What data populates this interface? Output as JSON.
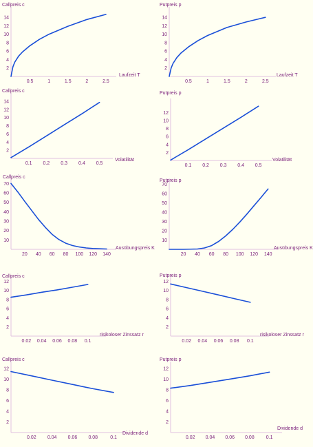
{
  "colors": {
    "background": "#fffff2",
    "text": "#7a1f7a",
    "axis": "#e0c0e0",
    "curve": "#1a4fd8"
  },
  "chart_data": [
    {
      "type": "line",
      "ylabel": "Callpreis c",
      "xlabel": "Laufzeit T",
      "xlim": [
        0,
        2.7
      ],
      "ylim": [
        0,
        15.5
      ],
      "xticks": [
        0.5,
        1,
        1.5,
        2,
        2.5
      ],
      "xtick_labels": [
        "0.5",
        "1",
        "1.5",
        "2",
        "2.5"
      ],
      "yticks": [
        2,
        4,
        6,
        8,
        10,
        12,
        14
      ],
      "ytick_labels": [
        "2",
        "4",
        "6",
        "8",
        "10",
        "12",
        "14"
      ],
      "series": [
        {
          "x": [
            0,
            0.05,
            0.1,
            0.2,
            0.3,
            0.5,
            0.75,
            1,
            1.5,
            2,
            2.5
          ],
          "y": [
            0,
            2.3,
            3.4,
            4.8,
            5.8,
            7.3,
            8.8,
            10,
            11.9,
            13.5,
            14.7
          ]
        }
      ]
    },
    {
      "type": "line",
      "ylabel": "Putpreis p",
      "xlabel": "Laufzeit T",
      "xlim": [
        0,
        2.7
      ],
      "ylim": [
        0,
        15.5
      ],
      "xticks": [
        0.5,
        1,
        1.5,
        2,
        2.5
      ],
      "xtick_labels": [
        "0.5",
        "1",
        "1.5",
        "2",
        "2.5"
      ],
      "yticks": [
        2,
        4,
        6,
        8,
        10,
        12,
        14
      ],
      "ytick_labels": [
        "2",
        "4",
        "6",
        "8",
        "10",
        "12",
        "14"
      ],
      "series": [
        {
          "x": [
            0,
            0.05,
            0.1,
            0.2,
            0.3,
            0.5,
            0.75,
            1,
            1.5,
            2,
            2.5
          ],
          "y": [
            0,
            2.0,
            3.1,
            4.5,
            5.5,
            7.0,
            8.5,
            9.7,
            11.6,
            12.9,
            14.0
          ]
        }
      ]
    },
    {
      "type": "line",
      "ylabel": "Callpreis c",
      "xlabel": "Volatilität",
      "xlim": [
        0,
        0.56
      ],
      "ylim": [
        0,
        15
      ],
      "xticks": [
        0.1,
        0.2,
        0.3,
        0.4,
        0.5
      ],
      "xtick_labels": [
        "0.1",
        "0.2",
        "0.3",
        "0.4",
        "0.5"
      ],
      "yticks": [
        2,
        4,
        6,
        8,
        10,
        12,
        14
      ],
      "ytick_labels": [
        "2",
        "4",
        "6",
        "8",
        "10",
        "12",
        "14"
      ],
      "series": [
        {
          "x": [
            0,
            0.1,
            0.2,
            0.3,
            0.4,
            0.5
          ],
          "y": [
            0.2,
            2.8,
            5.5,
            8.2,
            10.9,
            13.7
          ]
        }
      ]
    },
    {
      "type": "line",
      "ylabel": "Putpreis p",
      "xlabel": "Volatilität",
      "xlim": [
        0,
        0.56
      ],
      "ylim": [
        0,
        14.5
      ],
      "xticks": [
        0.1,
        0.2,
        0.3,
        0.4,
        0.5
      ],
      "xtick_labels": [
        "0.1",
        "0.2",
        "0.3",
        "0.4",
        "0.5"
      ],
      "yticks": [
        2,
        4,
        6,
        8,
        10,
        12
      ],
      "ytick_labels": [
        "2",
        "4",
        "6",
        "8",
        "10",
        "12"
      ],
      "series": [
        {
          "x": [
            0,
            0.1,
            0.2,
            0.3,
            0.4,
            0.5
          ],
          "y": [
            0.1,
            2.7,
            5.4,
            8.1,
            10.8,
            13.6
          ]
        }
      ]
    },
    {
      "type": "line",
      "ylabel": "Callpreis c",
      "xlabel": "Ausübungspreis K",
      "xlim": [
        0,
        150
      ],
      "ylim": [
        0,
        71
      ],
      "xticks": [
        20,
        40,
        60,
        80,
        100,
        120,
        140
      ],
      "xtick_labels": [
        "20",
        "40",
        "60",
        "80",
        "100",
        "120",
        "140"
      ],
      "yticks": [
        10,
        20,
        30,
        40,
        50,
        60,
        70
      ],
      "ytick_labels": [
        "10",
        "20",
        "30",
        "40",
        "50",
        "60",
        "70"
      ],
      "series": [
        {
          "x": [
            0,
            10,
            20,
            30,
            40,
            50,
            60,
            70,
            80,
            90,
            100,
            110,
            120,
            130,
            140
          ],
          "y": [
            70,
            61,
            51,
            41.5,
            32,
            23.5,
            16,
            10.5,
            6.5,
            4,
            2.5,
            1.5,
            0.9,
            0.6,
            0.4
          ]
        }
      ]
    },
    {
      "type": "line",
      "ylabel": "Putpreis p",
      "xlabel": "Ausübungspreis K",
      "xlim": [
        0,
        150
      ],
      "ylim": [
        0,
        72
      ],
      "xticks": [
        20,
        40,
        60,
        80,
        100,
        120,
        140
      ],
      "xtick_labels": [
        "20",
        "40",
        "60",
        "80",
        "100",
        "120",
        "140"
      ],
      "yticks": [
        10,
        20,
        30,
        40,
        50,
        60,
        70
      ],
      "ytick_labels": [
        "10",
        "20",
        "30",
        "40",
        "50",
        "60",
        "70"
      ],
      "series": [
        {
          "x": [
            0,
            20,
            40,
            50,
            60,
            70,
            80,
            90,
            100,
            110,
            120,
            130,
            140
          ],
          "y": [
            0,
            0,
            0.4,
            1.5,
            4,
            8.5,
            14.5,
            21.5,
            29.5,
            38,
            47,
            56,
            65
          ]
        }
      ]
    },
    {
      "type": "line",
      "ylabel": "Callpreis c",
      "xlabel": "risikoloser Zinssatz r",
      "xlim": [
        0,
        0.12
      ],
      "ylim": [
        0,
        12.5
      ],
      "xticks": [
        0.02,
        0.04,
        0.06,
        0.08,
        0.1
      ],
      "xtick_labels": [
        "0.02",
        "0.04",
        "0.06",
        "0.08",
        "0.1"
      ],
      "yticks": [
        2,
        4,
        6,
        8,
        10,
        12
      ],
      "ytick_labels": [
        "2",
        "4",
        "6",
        "8",
        "10",
        "12"
      ],
      "series": [
        {
          "x": [
            0,
            0.02,
            0.04,
            0.06,
            0.08,
            0.1
          ],
          "y": [
            8.5,
            9.0,
            9.6,
            10.1,
            10.7,
            11.3
          ]
        }
      ]
    },
    {
      "type": "line",
      "ylabel": "Putpreis p",
      "xlabel": "risikoloser Zinssatz r",
      "xlim": [
        0,
        0.12
      ],
      "ylim": [
        0,
        12.5
      ],
      "xticks": [
        0.02,
        0.04,
        0.06,
        0.08,
        0.1
      ],
      "xtick_labels": [
        "0.02",
        "0.04",
        "0.06",
        "0.08",
        "0.1"
      ],
      "yticks": [
        2,
        4,
        6,
        8,
        10,
        12
      ],
      "ytick_labels": [
        "2",
        "4",
        "6",
        "8",
        "10",
        "12"
      ],
      "series": [
        {
          "x": [
            0,
            0.02,
            0.04,
            0.06,
            0.08,
            0.1
          ],
          "y": [
            11.4,
            10.6,
            9.8,
            9.0,
            8.2,
            7.4
          ]
        }
      ]
    },
    {
      "type": "line",
      "ylabel": "Callpreis c",
      "xlabel": "Dividende d",
      "xlim": [
        0,
        0.11
      ],
      "ylim": [
        0,
        12.5
      ],
      "xticks": [
        0.02,
        0.04,
        0.06,
        0.08,
        0.1
      ],
      "xtick_labels": [
        "0.02",
        "0.04",
        "0.06",
        "0.08",
        "0.1"
      ],
      "yticks": [
        2,
        4,
        6,
        8,
        10,
        12
      ],
      "ytick_labels": [
        "2",
        "4",
        "6",
        "8",
        "10",
        "12"
      ],
      "series": [
        {
          "x": [
            0,
            0.02,
            0.04,
            0.06,
            0.08,
            0.1
          ],
          "y": [
            11.4,
            10.6,
            9.8,
            9.0,
            8.2,
            7.5
          ]
        }
      ]
    },
    {
      "type": "line",
      "ylabel": "Putpreis p",
      "xlabel": "Dividende d",
      "xlim": [
        0,
        0.11
      ],
      "ylim": [
        0,
        12.5
      ],
      "xticks": [
        0.02,
        0.04,
        0.06,
        0.08,
        0.1
      ],
      "xtick_labels": [
        "0.02",
        "0.04",
        "0.06",
        "0.08",
        "0.1"
      ],
      "yticks": [
        2,
        4,
        6,
        8,
        10,
        12
      ],
      "ytick_labels": [
        "2",
        "4",
        "6",
        "8",
        "10",
        "12"
      ],
      "series": [
        {
          "x": [
            0,
            0.02,
            0.04,
            0.06,
            0.08,
            0.1
          ],
          "y": [
            8.3,
            8.8,
            9.4,
            10.0,
            10.6,
            11.3
          ]
        }
      ]
    }
  ]
}
